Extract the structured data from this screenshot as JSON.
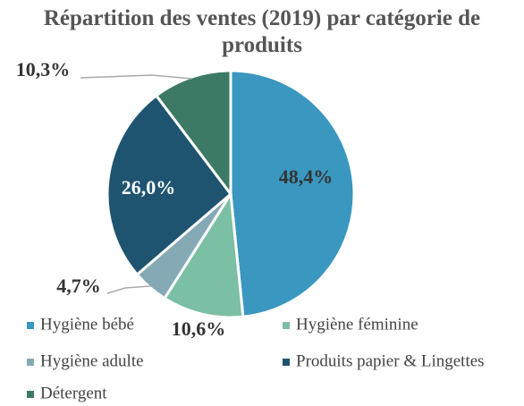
{
  "chart_data": {
    "type": "pie",
    "title": "Répartition des ventes (2019) par catégorie de produits",
    "categories": [
      "Hygiène bébé",
      "Hygiène féminine",
      "Hygiène adulte",
      "Produits papier & Lingettes",
      "Détergent"
    ],
    "values": [
      48.4,
      10.6,
      4.7,
      26.0,
      10.3
    ],
    "value_labels": [
      "48,4%",
      "10,6%",
      "4,7%",
      "26,0%",
      "10,3%"
    ],
    "colors": [
      "#3a97c0",
      "#7bbfa5",
      "#85aab5",
      "#1f5470",
      "#3d7a65"
    ],
    "legend": "bottom"
  }
}
